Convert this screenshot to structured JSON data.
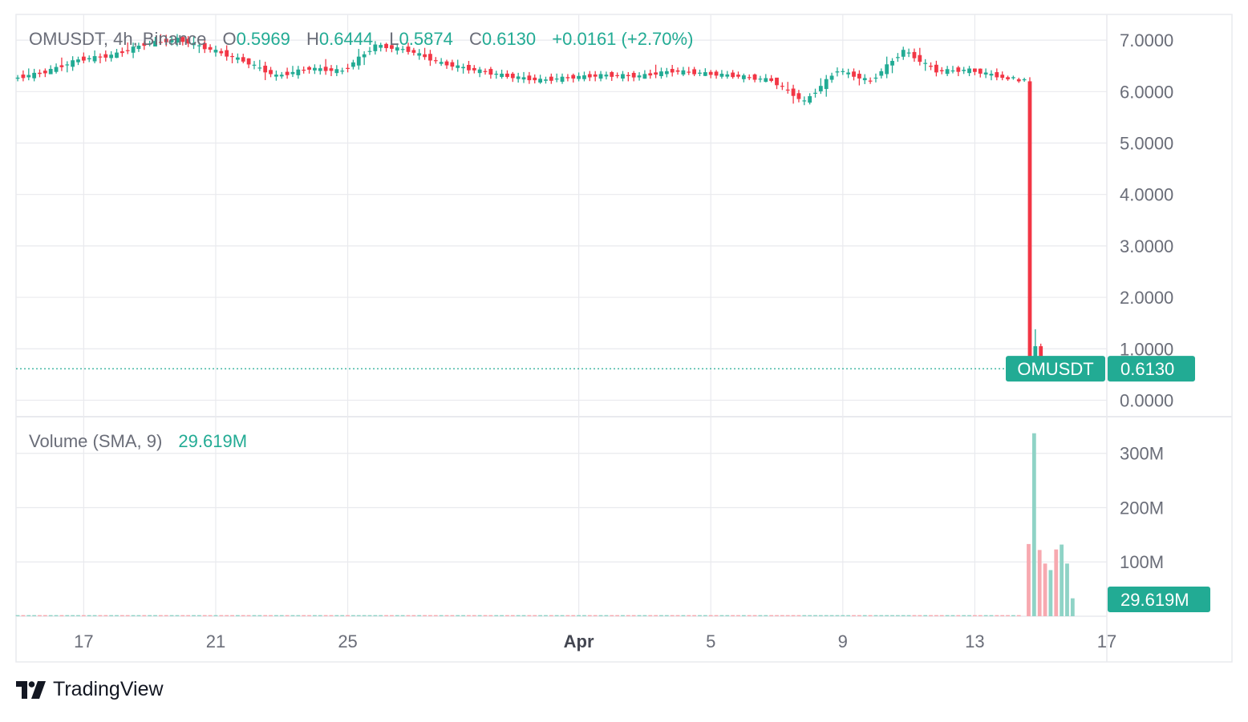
{
  "header": {
    "symbol_line": "OMUSDT, 4h, Binance",
    "open_key": "O",
    "open_val": "0.5969",
    "high_key": "H",
    "high_val": "0.6444",
    "low_key": "L",
    "low_val": "0.5874",
    "close_key": "C",
    "close_val": "0.6130",
    "change": "+0.0161 (+2.70%)"
  },
  "volume_legend": {
    "label": "Volume (SMA, 9)",
    "value": "29.619M"
  },
  "price_label": {
    "symbol": "OMUSDT",
    "value": "0.6130"
  },
  "volume_label": {
    "value": "29.619M"
  },
  "brand": {
    "name": "TradingView"
  },
  "colors": {
    "up": "#22ab94",
    "down": "#f23645",
    "up_volume": "#8fd3c6",
    "down_volume": "#f7a9b0",
    "grid": "#e9eaee",
    "axis_text": "#6a6d78"
  },
  "chart_data": [
    {
      "type": "candlestick",
      "title": "OMUSDT, 4h, Binance",
      "x_axis": {
        "ticks": [
          "17",
          "21",
          "25",
          "Apr",
          "5",
          "9",
          "13",
          "17"
        ],
        "tick_days": [
          17,
          21,
          25,
          32,
          36,
          40,
          44,
          48
        ],
        "range_days": [
          14.95,
          48.0
        ]
      },
      "y_axis": {
        "side": "right",
        "ticks": [
          "0.0000",
          "1.0000",
          "2.0000",
          "3.0000",
          "4.0000",
          "5.0000",
          "6.0000",
          "7.0000"
        ],
        "tick_values": [
          0,
          1,
          2,
          3,
          4,
          5,
          6,
          7
        ],
        "range": [
          -0.32,
          7.5
        ]
      },
      "last_price": 0.613,
      "grid": true,
      "ohlc": [
        [
          "Mar 15",
          6.25,
          6.45,
          6.2,
          6.38
        ],
        [
          "Mar 16",
          6.38,
          6.75,
          6.35,
          6.62
        ],
        [
          "Mar 17",
          6.62,
          6.8,
          6.55,
          6.7
        ],
        [
          "Mar 18",
          6.7,
          6.98,
          6.65,
          6.92
        ],
        [
          "Mar 19",
          6.92,
          7.12,
          6.88,
          7.02
        ],
        [
          "Mar 20",
          7.02,
          7.08,
          6.75,
          6.82
        ],
        [
          "Mar 21",
          6.82,
          6.9,
          6.55,
          6.6
        ],
        [
          "Mar 22",
          6.6,
          6.65,
          6.15,
          6.3
        ],
        [
          "Mar 23",
          6.3,
          6.5,
          6.25,
          6.45
        ],
        [
          "Mar 24",
          6.45,
          6.95,
          6.3,
          6.4
        ],
        [
          "Mar 25",
          6.4,
          7.02,
          6.35,
          6.9
        ],
        [
          "Mar 26",
          6.9,
          6.95,
          6.72,
          6.8
        ],
        [
          "Mar 27",
          6.8,
          6.85,
          6.5,
          6.55
        ],
        [
          "Mar 28",
          6.55,
          6.62,
          6.35,
          6.42
        ],
        [
          "Mar 29",
          6.42,
          6.48,
          6.25,
          6.3
        ],
        [
          "Mar 30",
          6.3,
          6.38,
          6.15,
          6.22
        ],
        [
          "Mar 31",
          6.22,
          6.35,
          6.15,
          6.28
        ],
        [
          "Apr 1",
          6.28,
          6.4,
          6.2,
          6.32
        ],
        [
          "Apr 2",
          6.32,
          6.4,
          6.2,
          6.3
        ],
        [
          "Apr 3",
          6.3,
          6.55,
          6.25,
          6.4
        ],
        [
          "Apr 4",
          6.4,
          6.48,
          6.3,
          6.35
        ],
        [
          "Apr 5",
          6.35,
          6.42,
          6.25,
          6.3
        ],
        [
          "Apr 6",
          6.3,
          6.35,
          6.18,
          6.22
        ],
        [
          "Apr 7",
          6.22,
          6.25,
          5.62,
          5.8
        ],
        [
          "Apr 8",
          5.8,
          6.55,
          5.75,
          6.42
        ],
        [
          "Apr 9",
          6.42,
          6.45,
          6.12,
          6.2
        ],
        [
          "Apr 10",
          6.2,
          6.88,
          6.15,
          6.8
        ],
        [
          "Apr 11",
          6.8,
          6.85,
          6.25,
          6.4
        ],
        [
          "Apr 12",
          6.4,
          6.5,
          6.3,
          6.42
        ],
        [
          "Apr 13",
          6.42,
          6.45,
          6.22,
          6.28
        ],
        [
          "Apr 14",
          6.28,
          6.32,
          0.37,
          0.52
        ],
        [
          "Apr 15",
          0.52,
          1.38,
          0.48,
          0.61
        ]
      ]
    },
    {
      "type": "bar",
      "title": "Volume (SMA, 9)",
      "y_axis": {
        "side": "right",
        "ticks": [
          "100M",
          "200M",
          "300M"
        ],
        "tick_values": [
          100,
          200,
          300
        ],
        "unit": "M",
        "range": [
          0,
          338
        ]
      },
      "sma_9": 29.619,
      "values_m": [
        [
          "Mar 15 - Apr 13",
          2,
          "flat"
        ],
        [
          "Apr 14 04:00",
          133,
          "down"
        ],
        [
          "Apr 14 08:00",
          337,
          "up"
        ],
        [
          "Apr 14 12:00",
          122,
          "down"
        ],
        [
          "Apr 14 16:00",
          97,
          "down"
        ],
        [
          "Apr 14 20:00",
          85,
          "up"
        ],
        [
          "Apr 15 00:00",
          123,
          "down"
        ],
        [
          "Apr 15 04:00",
          132,
          "up"
        ],
        [
          "Apr 15 08:00",
          97,
          "up"
        ],
        [
          "Apr 15 12:00",
          33,
          "up"
        ]
      ]
    }
  ]
}
